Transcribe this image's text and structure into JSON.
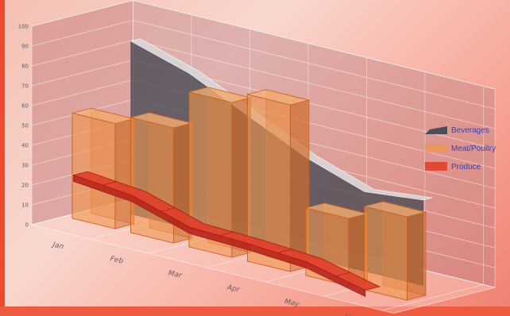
{
  "chart_data": {
    "type": "bar",
    "categories": [
      "Jan",
      "Feb",
      "Mar",
      "Apr",
      "May",
      "Jun"
    ],
    "ylim": [
      0,
      100
    ],
    "yticks": [
      0,
      10,
      20,
      30,
      40,
      50,
      60,
      70,
      80,
      90,
      100
    ],
    "grid": true,
    "legend_position": "right",
    "series": [
      {
        "name": "Beverages",
        "kind": "area",
        "color": "#4d4d55",
        "values": [
          87,
          78,
          64,
          50,
          40,
          43
        ]
      },
      {
        "name": "Meat/Poultry",
        "kind": "bar",
        "color": "#f0964d",
        "values": [
          53,
          58,
          78,
          84,
          34,
          42
        ]
      },
      {
        "name": "Produce",
        "kind": "line",
        "color": "#e0402a",
        "values": [
          27,
          24,
          15,
          14,
          12,
          5
        ]
      }
    ]
  }
}
